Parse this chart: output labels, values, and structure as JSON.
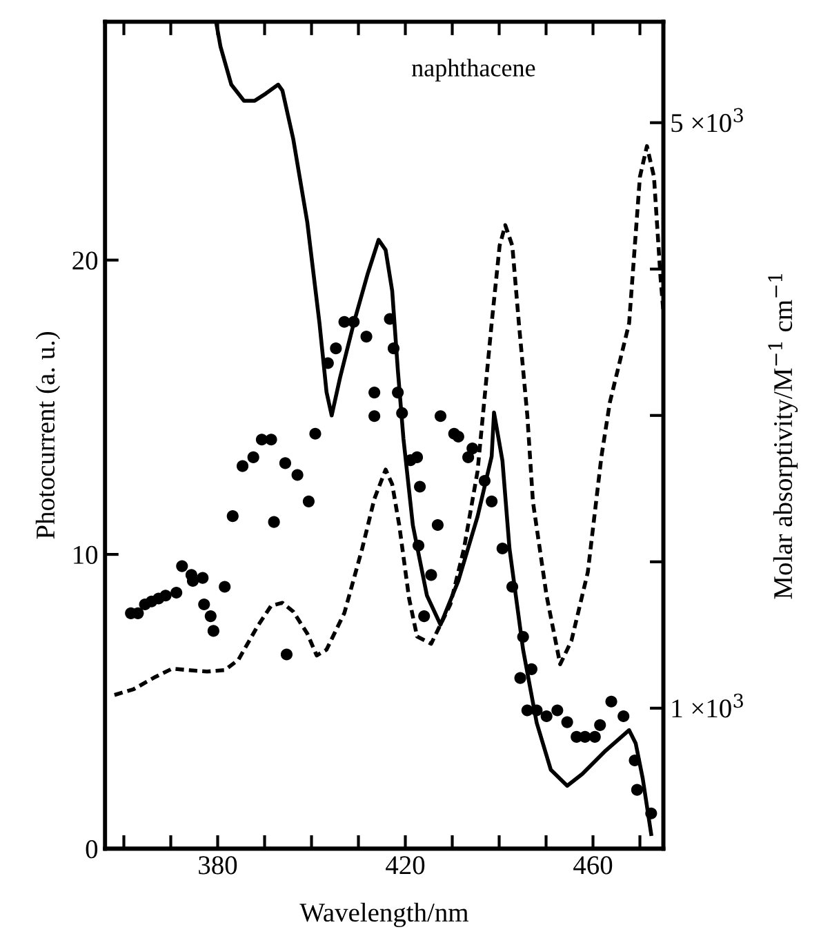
{
  "chart_data": {
    "type": "scatter",
    "xlabel": "Wavelength/nm",
    "ylabel": "Photocurrent (a. u.)",
    "y2label": "Molar absorptivity/M$^{−1}$ cm$^{−1}$",
    "annotations": [
      "naphthacene"
    ],
    "xlim": [
      356,
      475
    ],
    "xticks": [
      {
        "value": 360,
        "label": null
      },
      {
        "value": 370,
        "label": null
      },
      380,
      {
        "value": 390,
        "label": null
      },
      {
        "value": 400,
        "label": null
      },
      {
        "value": 410,
        "label": null
      },
      420,
      {
        "value": 430,
        "label": null
      },
      {
        "value": 440,
        "label": null
      },
      {
        "value": 450,
        "label": null
      },
      460,
      {
        "value": 470,
        "label": null
      }
    ],
    "ylim": [
      0,
      28.1
    ],
    "yticks": [
      0,
      10,
      20
    ],
    "y2lim": [
      40,
      5690
    ],
    "y2ticks": [
      {
        "value": 1000,
        "label": "1 ×10$^{3}$"
      },
      {
        "value": 2000,
        "label": null
      },
      {
        "value": 3000,
        "label": null
      },
      {
        "value": 4000,
        "label": null
      },
      {
        "value": 5000,
        "label": "5 ×10$^{3}$"
      }
    ],
    "grid": false,
    "legend": false,
    "series": [
      {
        "color": "#000000",
        "marker": "circle",
        "x": [
          361.5,
          363.0,
          364.5,
          365.9,
          367.4,
          368.9,
          371.2,
          372.4,
          374.4,
          374.7,
          376.8,
          377.1,
          378.5,
          379.1,
          381.5,
          383.2,
          385.3,
          387.6,
          389.4,
          391.4,
          392.0,
          394.4,
          394.7,
          397.0,
          399.4,
          400.8,
          403.5,
          405.2,
          407.0,
          409.0,
          411.7,
          413.4,
          413.4,
          416.7,
          417.5,
          418.4,
          419.3,
          421.1,
          422.5,
          422.8,
          423.1,
          424.0,
          425.5,
          426.9,
          427.5,
          430.4,
          431.3,
          433.4,
          434.3,
          436.9,
          438.4,
          440.7,
          442.8,
          445.1,
          444.5,
          446.9,
          446.0,
          448.0,
          450.1,
          452.4,
          454.5,
          456.5,
          458.3,
          460.4,
          461.5,
          463.9,
          466.5,
          468.9,
          469.4,
          472.4
        ],
        "values": [
          8.0,
          8.0,
          8.3,
          8.4,
          8.5,
          8.6,
          8.7,
          9.6,
          9.3,
          9.1,
          9.2,
          8.3,
          7.9,
          7.4,
          8.9,
          11.3,
          13.0,
          13.3,
          13.9,
          13.9,
          11.1,
          13.1,
          6.6,
          12.7,
          11.8,
          14.1,
          16.5,
          17.0,
          17.9,
          17.9,
          17.4,
          15.5,
          14.7,
          18.0,
          17.0,
          15.5,
          14.8,
          13.2,
          13.3,
          10.3,
          12.3,
          7.9,
          9.3,
          11.0,
          14.7,
          14.1,
          14.0,
          13.3,
          13.6,
          12.5,
          11.8,
          10.2,
          8.9,
          7.2,
          5.8,
          6.1,
          4.7,
          4.7,
          4.5,
          4.7,
          4.3,
          3.8,
          3.8,
          3.8,
          4.2,
          5.0,
          4.5,
          3.0,
          2.0,
          1.2
        ]
      },
      {
        "type": "line",
        "axis": "y2",
        "color": "#000000",
        "line_style": "solid",
        "marker": "none",
        "x": [
          379.7,
          380.6,
          382.9,
          385.6,
          387.9,
          390.3,
          392.9,
          393.8,
          396.1,
          399.1,
          401.7,
          403.2,
          404.3,
          406.1,
          409.0,
          412.0,
          414.3,
          415.8,
          417.2,
          418.4,
          419.6,
          421.6,
          424.6,
          427.5,
          431.3,
          435.4,
          438.4,
          438.9,
          440.7,
          442.2,
          445.1,
          448.0,
          451.0,
          454.5,
          457.7,
          462.7,
          467.7,
          469.1,
          470.6,
          472.4
        ],
        "values": [
          5680,
          5520,
          5260,
          5150,
          5150,
          5200,
          5260,
          5220,
          4890,
          4320,
          3630,
          3160,
          3000,
          3260,
          3630,
          3970,
          4200,
          4130,
          3850,
          3310,
          2840,
          2250,
          1770,
          1570,
          1870,
          2310,
          2720,
          3020,
          2690,
          2090,
          1400,
          900,
          580,
          470,
          550,
          710,
          850,
          760,
          520,
          140
        ]
      },
      {
        "type": "line",
        "axis": "y2",
        "color": "#000000",
        "line_style": "dashed",
        "marker": "none",
        "x": [
          358.0,
          362.1,
          366.5,
          370.3,
          373.8,
          377.7,
          381.5,
          384.4,
          388.5,
          391.4,
          393.8,
          396.1,
          399.1,
          401.1,
          403.2,
          407.0,
          410.8,
          413.4,
          415.8,
          417.2,
          418.7,
          420.8,
          422.5,
          425.5,
          429.6,
          432.5,
          435.4,
          438.4,
          440.1,
          441.3,
          442.8,
          444.2,
          446.0,
          447.2,
          450.1,
          453.0,
          455.4,
          458.9,
          461.8,
          463.6,
          467.7,
          470.0,
          471.5,
          473.0,
          474.4,
          475.0
        ],
        "values": [
          1090,
          1130,
          1210,
          1270,
          1260,
          1250,
          1260,
          1330,
          1560,
          1700,
          1720,
          1660,
          1510,
          1360,
          1400,
          1650,
          2090,
          2430,
          2630,
          2530,
          2250,
          1750,
          1490,
          1440,
          1710,
          2090,
          2620,
          3630,
          4160,
          4300,
          4160,
          3630,
          3000,
          2410,
          1770,
          1300,
          1460,
          1930,
          2720,
          3090,
          3630,
          4630,
          4840,
          4630,
          3940,
          3710
        ]
      }
    ]
  }
}
